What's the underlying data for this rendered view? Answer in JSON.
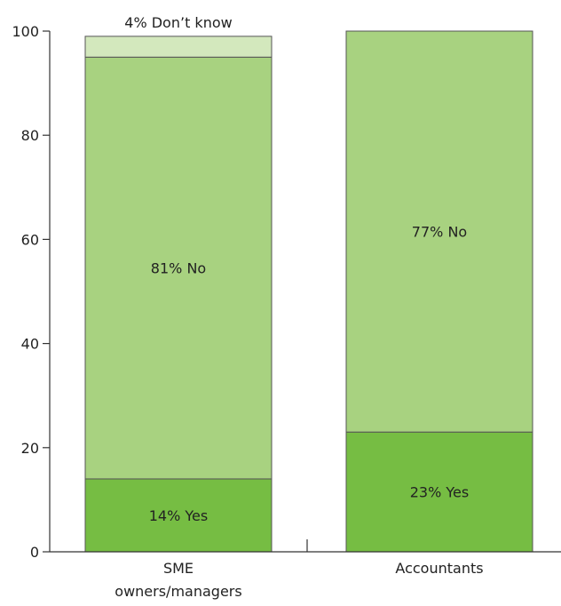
{
  "chart_data": {
    "type": "bar",
    "stacked": true,
    "title": "",
    "xlabel": "",
    "ylabel": "",
    "ylim": [
      0,
      100
    ],
    "yticks": [
      0,
      20,
      40,
      60,
      80,
      100
    ],
    "yticks_labels": [
      "0",
      "20",
      "40",
      "60",
      "80",
      "100"
    ],
    "grid": false,
    "legend": "none",
    "categories": [
      {
        "line1": "SME",
        "line2": "owners/managers"
      },
      {
        "line1": "Accountants",
        "line2": ""
      }
    ],
    "series": [
      {
        "values": [
          14,
          23
        ],
        "color": "#76bd43",
        "labels": [
          "14% Yes",
          "23% Yes"
        ]
      },
      {
        "values": [
          81,
          77
        ],
        "color": "#a8d280",
        "labels": [
          "81% No",
          "77% No"
        ]
      },
      {
        "values": [
          4,
          0
        ],
        "color": "#d3e8bd",
        "labels": [
          "4% Don’t know",
          ""
        ]
      }
    ]
  }
}
